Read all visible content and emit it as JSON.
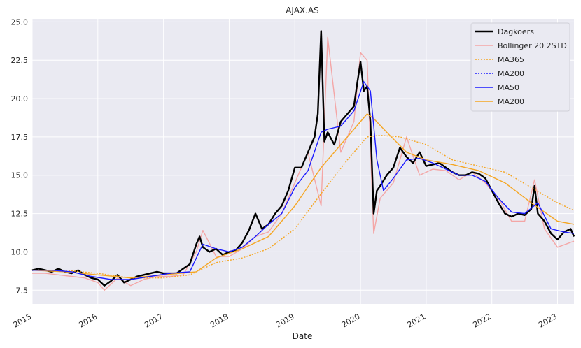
{
  "chart_data": {
    "type": "line",
    "title": "AJAX.AS",
    "xlabel": "Date",
    "ylabel": "",
    "xlim": [
      2015.0,
      2023.25
    ],
    "ylim": [
      6.6,
      25.2
    ],
    "x_ticks": [
      2015,
      2016,
      2017,
      2018,
      2019,
      2020,
      2021,
      2022,
      2023
    ],
    "x_tick_labels": [
      "2015",
      "2016",
      "2017",
      "2018",
      "2019",
      "2020",
      "2021",
      "2022",
      "2023"
    ],
    "y_ticks": [
      7.5,
      10.0,
      12.5,
      15.0,
      17.5,
      20.0,
      22.5,
      25.0
    ],
    "y_tick_labels": [
      "7.5",
      "10.0",
      "12.5",
      "15.0",
      "17.5",
      "20.0",
      "22.5",
      "25.0"
    ],
    "grid": true,
    "legend_position": "top-right",
    "colors": {
      "background": "#eaeaf2",
      "grid": "#ffffff",
      "dagkoers": "#000000",
      "bollinger": "#f4a6a6",
      "ma365": "#f5a623",
      "ma200_dotted": "#1a1aff",
      "ma50": "#1a1aff",
      "ma200": "#f5a623"
    },
    "legend": [
      "Dagkoers",
      "Bollinger 20 2STD",
      "MA365",
      "MA200",
      "MA50",
      "MA200"
    ],
    "series": [
      {
        "name": "Dagkoers",
        "style": "solid-thick",
        "x": [
          2015.0,
          2015.1,
          2015.2,
          2015.3,
          2015.4,
          2015.5,
          2015.6,
          2015.7,
          2015.8,
          2015.9,
          2016.0,
          2016.1,
          2016.2,
          2016.3,
          2016.4,
          2016.5,
          2016.6,
          2016.7,
          2016.8,
          2016.9,
          2017.0,
          2017.1,
          2017.2,
          2017.3,
          2017.4,
          2017.5,
          2017.55,
          2017.6,
          2017.7,
          2017.8,
          2017.9,
          2018.0,
          2018.1,
          2018.2,
          2018.3,
          2018.4,
          2018.5,
          2018.6,
          2018.7,
          2018.8,
          2018.9,
          2019.0,
          2019.1,
          2019.2,
          2019.3,
          2019.35,
          2019.4,
          2019.45,
          2019.5,
          2019.6,
          2019.7,
          2019.8,
          2019.9,
          2019.95,
          2020.0,
          2020.05,
          2020.1,
          2020.15,
          2020.2,
          2020.25,
          2020.3,
          2020.4,
          2020.5,
          2020.6,
          2020.7,
          2020.8,
          2020.9,
          2021.0,
          2021.1,
          2021.2,
          2021.3,
          2021.4,
          2021.5,
          2021.6,
          2021.7,
          2021.8,
          2021.9,
          2022.0,
          2022.1,
          2022.2,
          2022.3,
          2022.4,
          2022.5,
          2022.6,
          2022.65,
          2022.7,
          2022.8,
          2022.9,
          2023.0,
          2023.1,
          2023.2,
          2023.25
        ],
        "y": [
          8.8,
          8.9,
          8.8,
          8.7,
          8.9,
          8.7,
          8.6,
          8.8,
          8.5,
          8.3,
          8.2,
          7.8,
          8.1,
          8.5,
          8.0,
          8.2,
          8.4,
          8.5,
          8.6,
          8.7,
          8.6,
          8.6,
          8.6,
          8.9,
          9.2,
          10.5,
          11.0,
          10.3,
          10.0,
          10.2,
          9.8,
          10.0,
          10.1,
          10.6,
          11.4,
          12.5,
          11.5,
          11.8,
          12.5,
          13.0,
          14.0,
          15.5,
          15.5,
          16.5,
          17.5,
          19.0,
          24.4,
          17.2,
          17.8,
          17.0,
          18.5,
          19.0,
          19.5,
          21.0,
          22.4,
          20.5,
          20.8,
          18.5,
          12.5,
          14.0,
          14.3,
          15.0,
          15.5,
          16.8,
          16.2,
          15.8,
          16.5,
          15.6,
          15.7,
          15.8,
          15.5,
          15.2,
          15.0,
          15.0,
          15.2,
          15.1,
          14.8,
          14.0,
          13.2,
          12.5,
          12.3,
          12.5,
          12.4,
          12.8,
          14.3,
          12.5,
          12.0,
          11.2,
          10.8,
          11.3,
          11.5,
          11.0
        ]
      },
      {
        "name": "Bollinger 20 2STD",
        "style": "solid-thin",
        "x": [
          2015.0,
          2015.2,
          2015.4,
          2015.6,
          2015.8,
          2016.0,
          2016.1,
          2016.3,
          2016.5,
          2016.7,
          2016.9,
          2017.1,
          2017.3,
          2017.5,
          2017.6,
          2017.8,
          2018.0,
          2018.2,
          2018.4,
          2018.6,
          2018.8,
          2019.0,
          2019.2,
          2019.4,
          2019.5,
          2019.7,
          2019.9,
          2020.0,
          2020.1,
          2020.2,
          2020.3,
          2020.5,
          2020.7,
          2020.9,
          2021.1,
          2021.3,
          2021.5,
          2021.7,
          2021.9,
          2022.1,
          2022.3,
          2022.5,
          2022.65,
          2022.8,
          2023.0,
          2023.25
        ],
        "y": [
          8.6,
          8.6,
          8.5,
          8.4,
          8.3,
          8.0,
          7.5,
          8.3,
          7.8,
          8.2,
          8.4,
          8.4,
          8.5,
          10.0,
          11.4,
          9.7,
          9.7,
          10.2,
          11.0,
          11.3,
          12.5,
          14.5,
          16.5,
          13.0,
          24.0,
          16.5,
          18.5,
          23.0,
          22.5,
          11.2,
          13.5,
          14.5,
          17.5,
          15.0,
          15.4,
          15.3,
          14.7,
          15.2,
          14.5,
          13.5,
          12.0,
          12.0,
          14.7,
          11.5,
          10.3,
          10.7
        ]
      },
      {
        "name": "MA365",
        "style": "dotted",
        "x": [
          2015.0,
          2015.5,
          2016.0,
          2016.5,
          2017.0,
          2017.4,
          2017.8,
          2018.2,
          2018.6,
          2019.0,
          2019.4,
          2019.8,
          2020.1,
          2020.3,
          2020.6,
          2021.0,
          2021.4,
          2021.8,
          2022.2,
          2022.6,
          2023.0,
          2023.25
        ],
        "y": [
          8.8,
          8.8,
          8.6,
          8.3,
          8.3,
          8.5,
          9.3,
          9.6,
          10.2,
          11.5,
          13.8,
          16.0,
          17.5,
          17.6,
          17.5,
          17.0,
          16.0,
          15.6,
          15.2,
          14.2,
          13.2,
          12.7
        ]
      },
      {
        "name": "MA200",
        "style": "dotted",
        "x": [],
        "y": []
      },
      {
        "name": "MA50",
        "style": "solid-thin",
        "x": [
          2015.0,
          2015.3,
          2015.6,
          2015.9,
          2016.2,
          2016.5,
          2016.8,
          2017.1,
          2017.4,
          2017.6,
          2017.8,
          2018.0,
          2018.2,
          2018.4,
          2018.6,
          2018.8,
          2019.0,
          2019.2,
          2019.4,
          2019.5,
          2019.7,
          2019.9,
          2020.05,
          2020.15,
          2020.25,
          2020.35,
          2020.5,
          2020.7,
          2020.9,
          2021.1,
          2021.3,
          2021.5,
          2021.7,
          2021.9,
          2022.1,
          2022.3,
          2022.5,
          2022.7,
          2022.9,
          2023.1,
          2023.25
        ],
        "y": [
          8.8,
          8.8,
          8.7,
          8.4,
          8.2,
          8.2,
          8.4,
          8.6,
          8.7,
          10.5,
          10.2,
          10.0,
          10.3,
          11.0,
          11.8,
          12.5,
          14.2,
          15.3,
          17.8,
          18.0,
          18.2,
          19.2,
          21.1,
          20.5,
          16.0,
          14.0,
          14.8,
          16.0,
          16.1,
          15.8,
          15.4,
          15.0,
          15.0,
          14.6,
          13.5,
          12.6,
          12.5,
          13.2,
          11.5,
          11.3,
          11.2
        ]
      },
      {
        "name": "MA200",
        "style": "solid-thin",
        "x": [
          2015.0,
          2015.5,
          2016.0,
          2016.5,
          2017.0,
          2017.5,
          2017.8,
          2018.2,
          2018.6,
          2019.0,
          2019.4,
          2019.8,
          2020.1,
          2020.2,
          2020.4,
          2020.7,
          2021.0,
          2021.4,
          2021.8,
          2022.2,
          2022.6,
          2023.0,
          2023.25
        ],
        "y": [
          8.8,
          8.7,
          8.5,
          8.3,
          8.5,
          8.7,
          9.6,
          10.2,
          11.0,
          13.0,
          15.5,
          17.5,
          19.0,
          18.7,
          17.8,
          16.5,
          16.0,
          15.7,
          15.3,
          14.5,
          13.2,
          12.0,
          11.8
        ]
      }
    ]
  }
}
